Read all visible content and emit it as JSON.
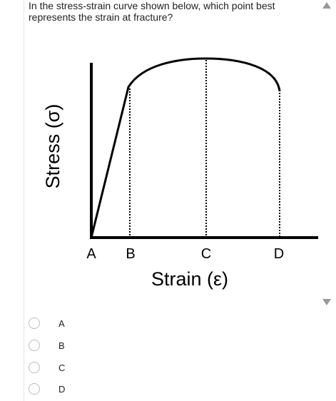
{
  "question": {
    "lines": [
      "In the stress-strain curve shown below, which point best",
      "represents the strain at fracture?"
    ]
  },
  "diagram": {
    "y_axis_label": "Stress (σ)",
    "x_axis_label": "Strain (ε)",
    "points": [
      "A",
      "B",
      "C",
      "D"
    ]
  },
  "options": [
    "A",
    "B",
    "C",
    "D"
  ]
}
